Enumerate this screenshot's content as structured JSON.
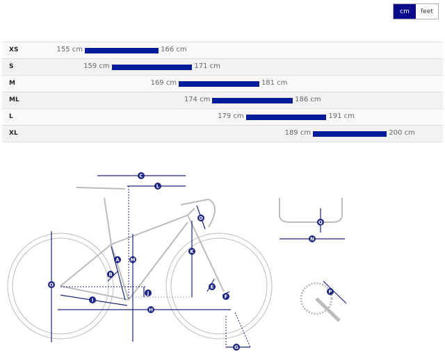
{
  "units": {
    "options": [
      "cm",
      "feet"
    ],
    "selected": "cm"
  },
  "colors": {
    "accent": "#0a0a8c",
    "bar": "#061a9c"
  },
  "sizes": [
    {
      "size": "XS",
      "min": "155 cm",
      "max": "166 cm",
      "min_cm": 155,
      "max_cm": 166
    },
    {
      "size": "S",
      "min": "159 cm",
      "max": "171 cm",
      "min_cm": 159,
      "max_cm": 171
    },
    {
      "size": "M",
      "min": "169 cm",
      "max": "181 cm",
      "min_cm": 169,
      "max_cm": 181
    },
    {
      "size": "ML",
      "min": "174 cm",
      "max": "186 cm",
      "min_cm": 174,
      "max_cm": 186
    },
    {
      "size": "L",
      "min": "179 cm",
      "max": "191 cm",
      "min_cm": 179,
      "max_cm": 191
    },
    {
      "size": "XL",
      "min": "189 cm",
      "max": "200 cm",
      "min_cm": 189,
      "max_cm": 200
    }
  ],
  "geometry_labels": [
    "A",
    "B",
    "C",
    "D",
    "E",
    "F",
    "G",
    "H",
    "I",
    "J",
    "K",
    "L",
    "M",
    "N",
    "O",
    "P",
    "Q"
  ]
}
